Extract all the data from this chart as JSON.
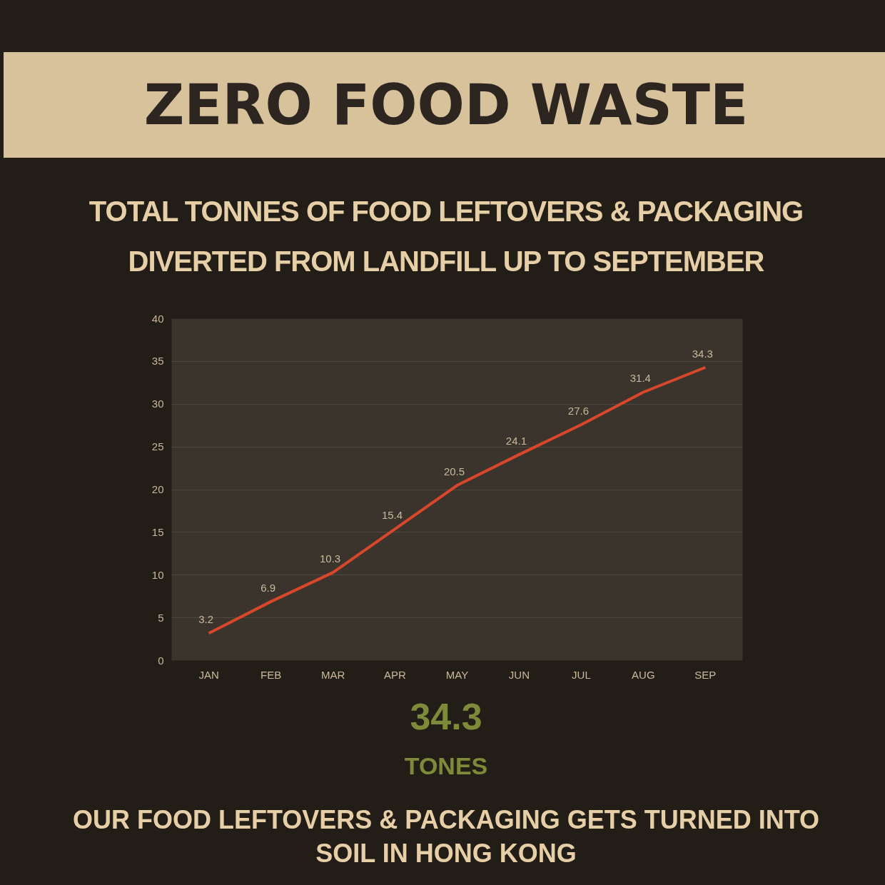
{
  "chart_data": {
    "type": "line",
    "title": "ZERO FOOD WASTE",
    "subtitle": "TOTAL TONNES OF FOOD LEFTOVERS & PACKAGING DIVERTED FROM LANDFILL UP TO SEPTEMBER",
    "categories": [
      "JAN",
      "FEB",
      "MAR",
      "APR",
      "MAY",
      "JUN",
      "JUL",
      "AUG",
      "SEP"
    ],
    "series": [
      {
        "color": "#d9472b",
        "values": [
          3.2,
          6.9,
          10.3,
          15.4,
          20.5,
          24.1,
          27.6,
          31.4,
          34.3
        ]
      }
    ],
    "ylim": [
      0,
      40
    ],
    "yticks": [
      0,
      5,
      10,
      15,
      20,
      25,
      30,
      35,
      40
    ],
    "grid": "y",
    "data_labels": true,
    "line_style": "solid",
    "annotations": [
      "34.3",
      "TONES",
      "OUR FOOD LEFTOVERS & PACKAGING GETS TURNED INTO SOIL IN HONG KONG"
    ]
  }
}
